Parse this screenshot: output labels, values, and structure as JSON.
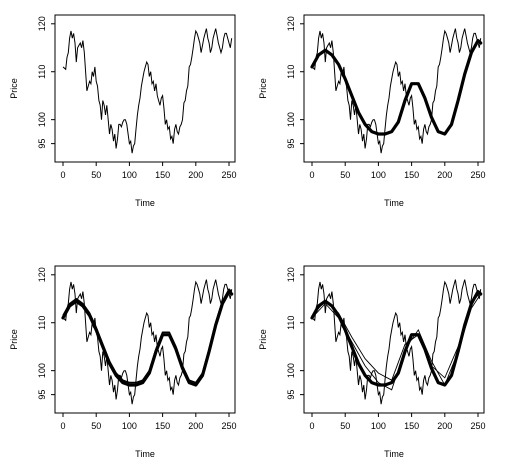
{
  "chart_data": [
    {
      "type": "line",
      "xlabel": "Time",
      "ylabel": "Price",
      "xlim": [
        0,
        256
      ],
      "ylim": [
        92,
        121
      ],
      "xticks": [
        "0",
        "50",
        "100",
        "150",
        "200",
        "250"
      ],
      "yticks": [
        "95",
        "100",
        "110",
        "120"
      ],
      "series": [
        {
          "values_ref": "price",
          "style": "raw"
        }
      ]
    },
    {
      "type": "line",
      "xlabel": "Time",
      "ylabel": "Price",
      "xlim": [
        0,
        256
      ],
      "ylim": [
        92,
        121
      ],
      "xticks": [
        "0",
        "50",
        "100",
        "150",
        "200",
        "250"
      ],
      "yticks": [
        "95",
        "100",
        "110",
        "120"
      ],
      "series": [
        {
          "values_ref": "price",
          "style": "raw"
        },
        {
          "values_ref": "smooth_a",
          "style": "smooth"
        }
      ]
    },
    {
      "type": "line",
      "xlabel": "Time",
      "ylabel": "Price",
      "xlim": [
        0,
        256
      ],
      "ylim": [
        92,
        121
      ],
      "xticks": [
        "0",
        "50",
        "100",
        "150",
        "200",
        "250"
      ],
      "yticks": [
        "95",
        "100",
        "110",
        "120"
      ],
      "series": [
        {
          "values_ref": "price",
          "style": "raw"
        },
        {
          "values_ref": "smooth_a",
          "style": "smooth"
        },
        {
          "values_ref": "smooth_b",
          "style": "smooth-thin"
        }
      ]
    },
    {
      "type": "line",
      "xlabel": "Time",
      "ylabel": "Price",
      "xlim": [
        0,
        256
      ],
      "ylim": [
        92,
        121
      ],
      "xticks": [
        "0",
        "50",
        "100",
        "150",
        "200",
        "250"
      ],
      "yticks": [
        "95",
        "100",
        "110",
        "120"
      ],
      "series": [
        {
          "values_ref": "price",
          "style": "raw"
        },
        {
          "values_ref": "smooth_a",
          "style": "smooth"
        },
        {
          "values_ref": "fit_a",
          "style": "fit"
        },
        {
          "values_ref": "fit_b",
          "style": "fit"
        }
      ]
    }
  ],
  "series_values": {
    "price": {
      "x": [
        0,
        4,
        6,
        8,
        10,
        12,
        14,
        16,
        18,
        20,
        22,
        24,
        26,
        28,
        30,
        32,
        34,
        36,
        38,
        40,
        42,
        44,
        46,
        48,
        50,
        52,
        54,
        56,
        58,
        60,
        62,
        64,
        66,
        68,
        70,
        72,
        74,
        76,
        78,
        80,
        82,
        84,
        86,
        88,
        90,
        92,
        94,
        96,
        98,
        100,
        102,
        104,
        106,
        108,
        110,
        112,
        114,
        116,
        118,
        120,
        122,
        124,
        126,
        128,
        130,
        132,
        134,
        136,
        138,
        140,
        142,
        144,
        146,
        148,
        150,
        152,
        154,
        156,
        158,
        160,
        162,
        164,
        166,
        168,
        170,
        172,
        174,
        176,
        178,
        180,
        182,
        184,
        186,
        188,
        190,
        192,
        194,
        196,
        198,
        200,
        202,
        204,
        206,
        208,
        210,
        212,
        214,
        216,
        218,
        220,
        222,
        224,
        226,
        228,
        230,
        232,
        234,
        236,
        238,
        240,
        242,
        244,
        246,
        248,
        250,
        252,
        254
      ],
      "y": [
        111,
        110.5,
        113,
        114,
        117,
        118.5,
        117,
        118,
        116,
        112,
        115,
        115.5,
        116,
        115,
        116.5,
        114,
        110,
        106,
        107,
        108,
        107.5,
        110,
        109,
        111,
        108,
        107,
        104,
        103,
        100,
        104,
        103,
        101,
        103,
        100,
        97,
        99,
        98,
        95.5,
        97,
        94,
        96,
        99,
        99,
        98.5,
        99.5,
        100,
        100,
        99,
        97,
        95,
        95.5,
        93,
        94.5,
        95,
        98,
        101,
        103,
        104.5,
        107,
        108.5,
        110,
        111,
        112,
        111.5,
        109,
        110,
        107.5,
        108,
        106,
        107.5,
        105,
        104,
        103,
        104.5,
        105,
        102.5,
        99,
        100,
        98,
        98.5,
        96,
        96.5,
        95,
        98,
        99,
        97.5,
        97,
        98.5,
        99,
        100,
        103.5,
        104,
        106,
        107,
        111,
        111.5,
        113,
        115,
        117,
        118.5,
        118,
        117,
        116,
        114,
        115.5,
        117,
        118,
        119,
        117,
        116,
        114,
        115,
        117,
        118,
        119,
        117.5,
        116,
        115,
        114,
        115,
        117,
        118,
        118,
        117,
        116,
        115,
        117
      ]
    },
    "smooth_a": {
      "x": [
        0,
        10,
        20,
        30,
        40,
        50,
        60,
        70,
        80,
        90,
        100,
        110,
        120,
        130,
        140,
        150,
        160,
        170,
        180,
        190,
        200,
        210,
        220,
        230,
        240,
        250,
        254
      ],
      "y": [
        111,
        113.5,
        114.5,
        113.5,
        111.5,
        108.5,
        105,
        101.5,
        99,
        97.5,
        97,
        97,
        97.5,
        99.5,
        104,
        107.5,
        107.5,
        104.5,
        100.5,
        97.5,
        97,
        99,
        104,
        109.5,
        114,
        116.5,
        116
      ]
    },
    "smooth_b": {
      "x": [
        0,
        10,
        20,
        30,
        40,
        50,
        60,
        70,
        80,
        90,
        100,
        110,
        120,
        130,
        140,
        150,
        160,
        170,
        180,
        190,
        200,
        210,
        220,
        230,
        240,
        250,
        254
      ],
      "y": [
        111.5,
        114,
        115,
        114,
        112,
        109,
        105.5,
        102,
        99.5,
        98,
        97.5,
        97.5,
        98,
        100,
        104.5,
        108,
        108,
        105,
        101,
        98,
        97.5,
        99.5,
        104.5,
        110,
        114.5,
        117,
        116.5
      ]
    },
    "fit_a": {
      "x": [
        0,
        20,
        40,
        60,
        80,
        100,
        120,
        140,
        160,
        180,
        200,
        220,
        240,
        254
      ],
      "y": [
        111,
        114,
        111,
        106,
        101,
        97.5,
        96,
        104.5,
        108.5,
        102,
        97,
        104,
        113,
        116
      ]
    },
    "fit_b": {
      "x": [
        0,
        20,
        40,
        60,
        80,
        100,
        120,
        140,
        160,
        180,
        200,
        220,
        240,
        254
      ],
      "y": [
        111.5,
        114.5,
        112,
        107,
        102.5,
        99.5,
        98,
        105.5,
        107.5,
        101,
        98.5,
        105,
        114,
        116.5
      ]
    }
  }
}
